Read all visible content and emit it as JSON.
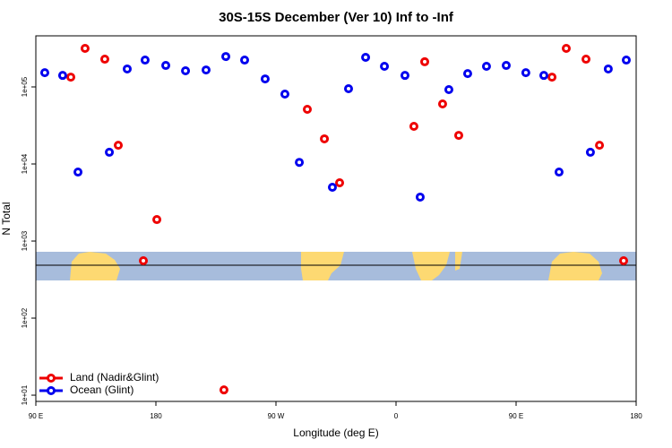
{
  "chart_data": {
    "type": "scatter",
    "title": "30S-15S December (Ver 10)   Inf to -Inf",
    "x_label": "Longitude (deg E)",
    "y_label": "N Total",
    "xlim": [
      90,
      540
    ],
    "xticks": [
      {
        "value": 90,
        "label": "90 E"
      },
      180,
      {
        "value": 270,
        "label": "90 W"
      },
      {
        "value": 360,
        "label": "0"
      },
      {
        "value": 450,
        "label": "90 E"
      },
      {
        "value": 540,
        "label": "180"
      }
    ],
    "ylim": [
      8.3,
      460000
    ],
    "yticks": [
      {
        "value": 10,
        "label": "1e+01"
      },
      {
        "value": 100,
        "label": "1e+02"
      },
      {
        "value": 1000,
        "label": "1e+03"
      },
      {
        "value": 10000,
        "label": "1e+04"
      },
      {
        "value": 100000,
        "label": "1e+05"
      }
    ],
    "log_y": true,
    "legend": "bottom-left",
    "series": [
      {
        "name": "Land (Nadir&Glint)",
        "color": "#ee0000",
        "x": [
          116.2,
          126.9,
          141.7,
          151.8,
          170.6,
          180.7,
          231,
          293.5,
          306.3,
          317.7,
          373.4,
          381.5,
          394.9,
          407,
          476.9,
          487.6,
          502.4,
          512.5,
          530.6
        ],
        "values": [
          134000,
          316000,
          229000,
          17500,
          555,
          1900,
          11.7,
          51200,
          21200,
          5700,
          30800,
          212000,
          60100,
          23500,
          134000,
          316000,
          229000,
          17500,
          555
        ]
      },
      {
        "name": "Ocean (Glint)",
        "color": "#0000ee",
        "x": [
          96.7,
          110.1,
          121.6,
          145.1,
          158.5,
          171.9,
          187.4,
          202.2,
          217.6,
          232.4,
          246.5,
          261.9,
          276.7,
          287.5,
          312.3,
          324.4,
          337.2,
          351.3,
          366.7,
          378.1,
          399.6,
          413.7,
          427.8,
          442.6,
          457.3,
          470.8,
          482.2,
          505.7,
          519.1,
          532.6
        ],
        "values": [
          153000,
          141000,
          7850,
          14200,
          171000,
          223000,
          190000,
          162000,
          166000,
          248000,
          223000,
          127000,
          80700,
          10500,
          4990,
          94800,
          242000,
          185000,
          141000,
          3720,
          92300,
          149000,
          185000,
          190000,
          153000,
          141000,
          7850,
          14200,
          171000,
          223000
        ]
      }
    ]
  }
}
